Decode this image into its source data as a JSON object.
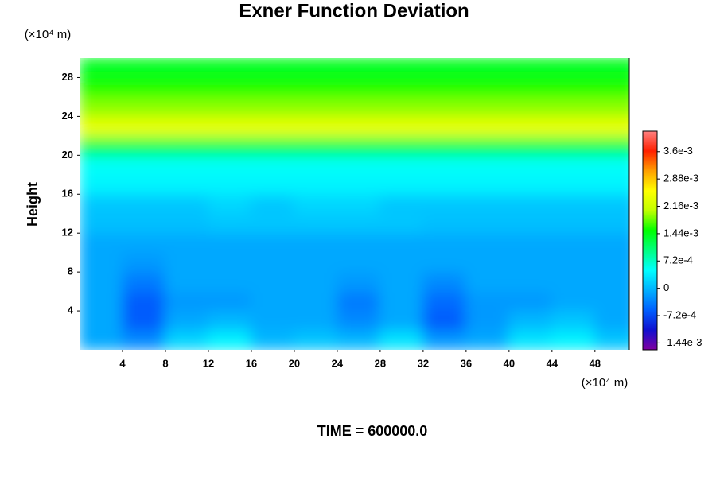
{
  "chart_data": {
    "type": "contour",
    "title": "Exner Function Deviation",
    "ylabel": "Height",
    "y_unit_label": "(×10⁴ m)",
    "x_unit_label": "(×10⁴ m)",
    "annotation": "TIME = 600000.0",
    "xlim": [
      0,
      51.2
    ],
    "ylim": [
      0,
      30
    ],
    "xticks": [
      4,
      8,
      12,
      16,
      20,
      24,
      28,
      32,
      36,
      40,
      44,
      48
    ],
    "yticks": [
      4,
      8,
      12,
      16,
      20,
      24,
      28
    ],
    "x": [
      2,
      6,
      10,
      14,
      18,
      22,
      26,
      30,
      34,
      38,
      42,
      46,
      50
    ],
    "y": [
      1,
      3,
      5,
      7,
      9,
      11,
      13,
      15,
      17,
      19,
      21,
      23,
      25,
      27,
      29
    ],
    "z": [
      [
        -0.0001,
        -0.0003,
        0.0002,
        0.0004,
        0,
        0.0001,
        0,
        0.0003,
        -0.0002,
        -0.0001,
        0.0003,
        0.0004,
        0.0001
      ],
      [
        -0.0001,
        -0.0006,
        -0.0001,
        0,
        -0.0001,
        -0.0001,
        -0.0003,
        -0.0001,
        -0.0006,
        -0.0002,
        0,
        0.0001,
        -0.0001
      ],
      [
        -0.0001,
        -0.0006,
        -0.0002,
        -0.0002,
        -0.0001,
        -0.0001,
        -0.0004,
        -0.0001,
        -0.0005,
        -0.0002,
        -0.0002,
        -0.0001,
        -0.0001
      ],
      [
        -0.0001,
        -0.0004,
        -0.0001,
        -0.0001,
        -0.0001,
        -0.0001,
        -0.0002,
        -0.0001,
        -0.0003,
        -0.0001,
        -0.0001,
        -0.0001,
        -0.0001
      ],
      [
        -0.0001,
        -0.0002,
        -0.0001,
        -0.0001,
        -0.0001,
        -0.0001,
        -0.0001,
        -0.0001,
        -0.0001,
        -0.0001,
        -0.0001,
        -0.0001,
        -0.0001
      ],
      [
        -0.0001,
        -0.0001,
        -0.0001,
        -0.0001,
        -0.0001,
        -0.0001,
        -0.0001,
        -0.0001,
        -0.0001,
        -0.0001,
        -0.0001,
        -0.0001,
        -0.0001
      ],
      [
        5e-05,
        5e-05,
        5e-05,
        0.0001,
        0.0001,
        0.0001,
        0.0001,
        0.0001,
        5e-05,
        5e-05,
        5e-05,
        5e-05,
        5e-05
      ],
      [
        0.0001,
        0.0001,
        0.0001,
        0.0002,
        0.0001,
        0.0002,
        0.0002,
        0.0001,
        0.0001,
        0.0001,
        0.0001,
        0.0001,
        0.0001
      ],
      [
        0.0004,
        0.0004,
        0.0004,
        0.0004,
        0.0004,
        0.0004,
        0.0004,
        0.0004,
        0.0004,
        0.0004,
        0.0004,
        0.0004,
        0.0004
      ],
      [
        0.0005,
        0.0005,
        0.0005,
        0.0005,
        0.0005,
        0.0005,
        0.0005,
        0.0005,
        0.0005,
        0.0005,
        0.0005,
        0.0005,
        0.0005
      ],
      [
        0.0012,
        0.0012,
        0.0012,
        0.0012,
        0.0012,
        0.0012,
        0.0012,
        0.0012,
        0.0012,
        0.0012,
        0.0012,
        0.0012,
        0.0012
      ],
      [
        0.0024,
        0.0024,
        0.0024,
        0.0024,
        0.0024,
        0.0024,
        0.0024,
        0.0024,
        0.0024,
        0.0024,
        0.0024,
        0.0024,
        0.0024
      ],
      [
        0.0019,
        0.0019,
        0.0019,
        0.0019,
        0.0019,
        0.0019,
        0.0019,
        0.0019,
        0.0019,
        0.0019,
        0.0019,
        0.0019,
        0.0019
      ],
      [
        0.0016,
        0.0016,
        0.0016,
        0.0016,
        0.0016,
        0.0016,
        0.0016,
        0.0016,
        0.0016,
        0.0016,
        0.0016,
        0.0016,
        0.0016
      ],
      [
        0.0014,
        0.0014,
        0.0014,
        0.0014,
        0.0014,
        0.0014,
        0.0014,
        0.0014,
        0.0014,
        0.0014,
        0.0014,
        0.0014,
        0.0014
      ]
    ],
    "zlim": [
      -0.00162,
      0.00414
    ],
    "colorbar_ticks": [
      {
        "value": -0.00144,
        "label": "-1.44e-3"
      },
      {
        "value": -0.00072,
        "label": "-7.2e-4"
      },
      0,
      {
        "value": 0.00072,
        "label": "7.2e-4"
      },
      {
        "value": 0.00144,
        "label": "1.44e-3"
      },
      {
        "value": 0.00216,
        "label": "2.16e-3"
      },
      {
        "value": 0.00288,
        "label": "2.88e-3"
      },
      {
        "value": 0.0036,
        "label": "3.6e-3"
      }
    ],
    "colorscale": [
      "#8000a0",
      "#1010d0",
      "#0060ff",
      "#00b0ff",
      "#00ffff",
      "#00ff80",
      "#00ff00",
      "#c0ff00",
      "#ffff00",
      "#ffa000",
      "#ff2000",
      "#ff8080"
    ]
  }
}
